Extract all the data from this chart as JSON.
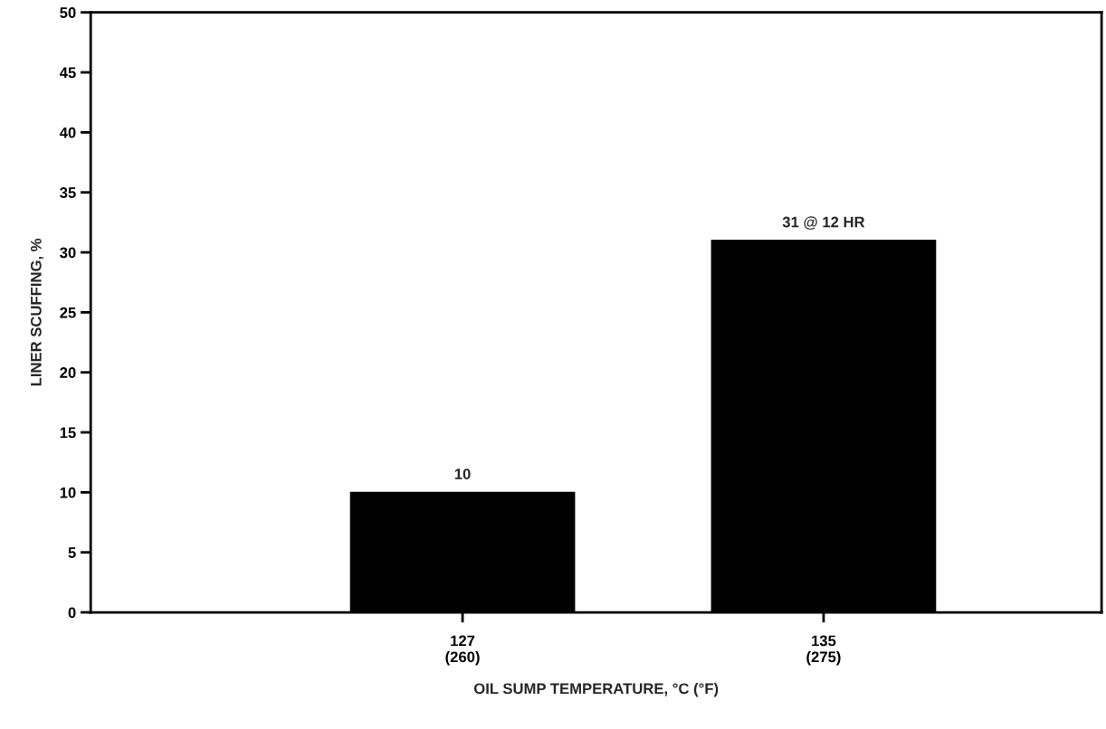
{
  "chart_data": {
    "type": "bar",
    "categories": [
      "127\n(260)",
      "135\n(275)"
    ],
    "values": [
      10,
      31
    ],
    "value_labels": [
      "10",
      "31 @ 12 HR"
    ],
    "color": "#000000",
    "xlabel": "OIL SUMP TEMPERATURE, °C (°F)",
    "ylabel": "LINER SCUFFING, %",
    "ylim": [
      0,
      50
    ],
    "yticks": [
      0,
      5,
      10,
      15,
      20,
      25,
      30,
      35,
      40,
      45,
      50
    ],
    "grid": false,
    "legend": false
  }
}
